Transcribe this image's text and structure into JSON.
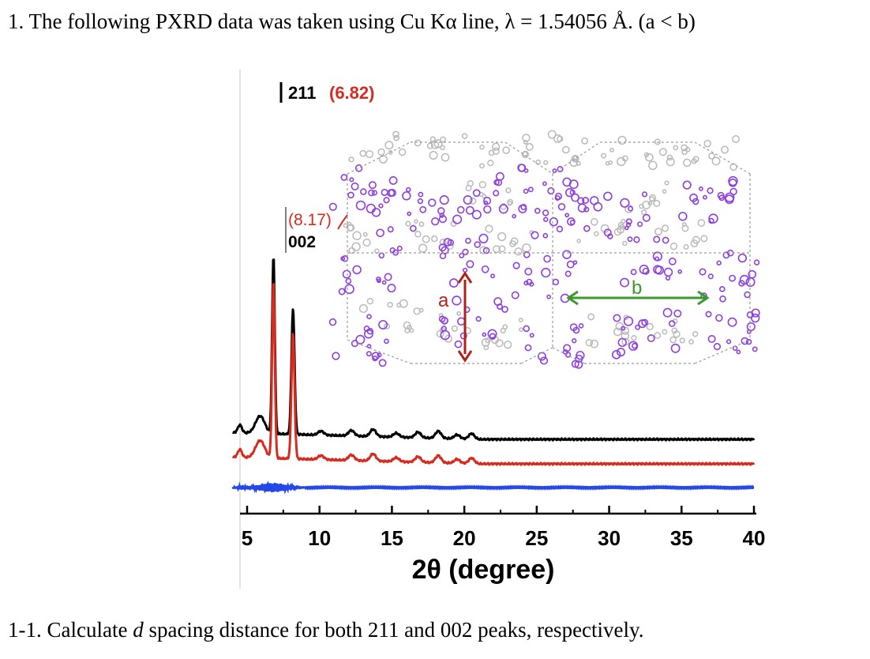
{
  "question": {
    "title": "1. The following PXRD data was taken using Cu Kα line, λ = 1.54056 Å. (a < b)",
    "sub_prefix": "1-1. Calculate ",
    "sub_var": "d",
    "sub_suffix": " spacing distance for both 211 and 002 peaks, respectively."
  },
  "figure": {
    "peak_211_label": "211",
    "peak_211_angle": "(6.82)",
    "peak_002_label": "002",
    "peak_002_angle": "(8.17)",
    "axis_a_label": "a",
    "axis_b_label": "b",
    "xlabel": "2θ (degree)",
    "colors": {
      "black_trace": "#000000",
      "red_trace": "#d62b1f",
      "blue_trace": "#2449e8",
      "purple": "#8e3fe0",
      "gray": "#b9b9b9",
      "a_arrow": "#b3201a",
      "b_arrow": "#3a9a2a"
    }
  },
  "chart_data": {
    "type": "line",
    "title": "",
    "xlabel": "2θ (degree)",
    "ylabel": "",
    "xlim": [
      4,
      40
    ],
    "x_ticks": [
      5,
      10,
      15,
      20,
      25,
      30,
      35,
      40
    ],
    "series": [
      {
        "name": "black",
        "color": "#000000",
        "peaks": [
          {
            "x": 6.82,
            "label": "211"
          },
          {
            "x": 8.17,
            "label": "002"
          }
        ]
      },
      {
        "name": "red",
        "color": "#d62b1f",
        "peaks": [
          {
            "x": 6.82,
            "label": "(6.82)"
          },
          {
            "x": 8.17,
            "label": "(8.17)"
          }
        ]
      },
      {
        "name": "blue",
        "color": "#2449e8",
        "peaks": []
      }
    ]
  }
}
